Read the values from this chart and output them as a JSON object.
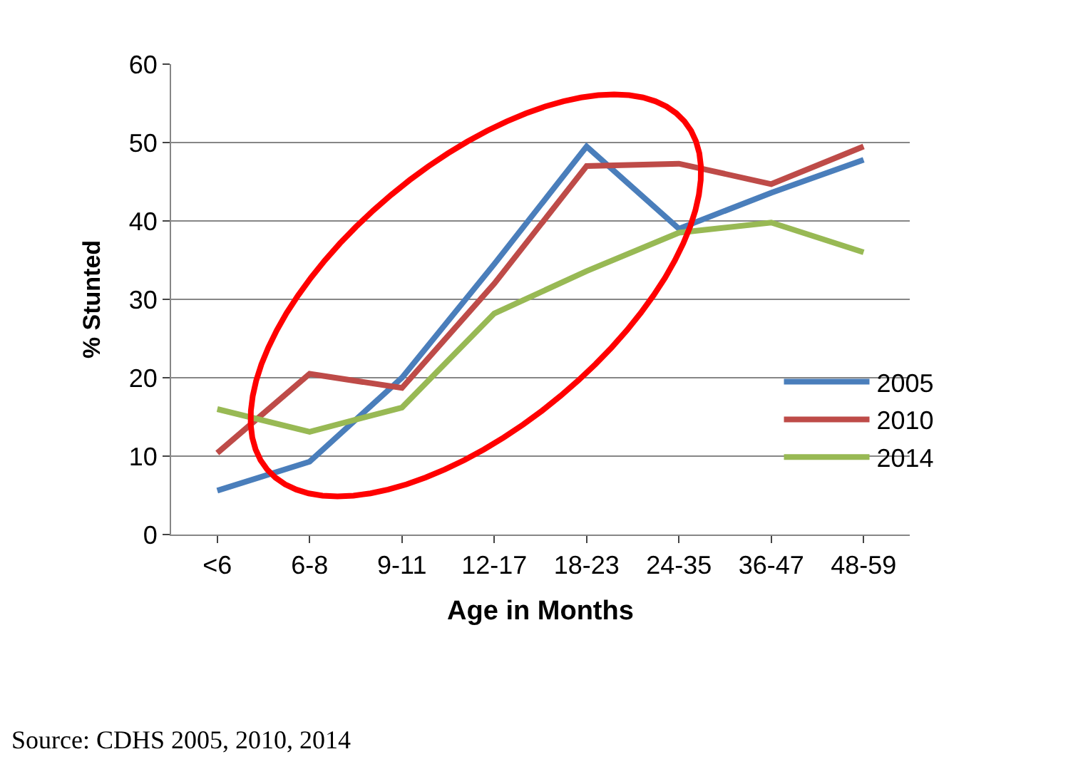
{
  "chart_data": {
    "type": "line",
    "xlabel": "Age in Months",
    "ylabel": "% Stunted",
    "categories": [
      "<6",
      "6-8",
      "9-11",
      "12-17",
      "18-23",
      "24-35",
      "36-47",
      "48-59"
    ],
    "series": [
      {
        "name": "2005",
        "color": "#4a7ebb",
        "values": [
          5.6,
          9.3,
          20,
          34.5,
          49.5,
          39,
          43.6,
          47.8
        ]
      },
      {
        "name": "2010",
        "color": "#be4b48",
        "values": [
          10.4,
          20.5,
          18.7,
          32,
          47,
          47.3,
          44.7,
          49.5
        ]
      },
      {
        "name": "2014",
        "color": "#98b954",
        "values": [
          16,
          13.1,
          16.2,
          28.2,
          33.6,
          38.5,
          39.8,
          36
        ]
      }
    ],
    "ylim": [
      0,
      60
    ],
    "yticks": [
      0,
      10,
      20,
      30,
      40,
      50,
      60
    ],
    "grid": "y",
    "legend": "right",
    "marker": "none",
    "line_style": "solid",
    "annotations": [
      "Source: CDHS 2005, 2010, 2014"
    ]
  }
}
